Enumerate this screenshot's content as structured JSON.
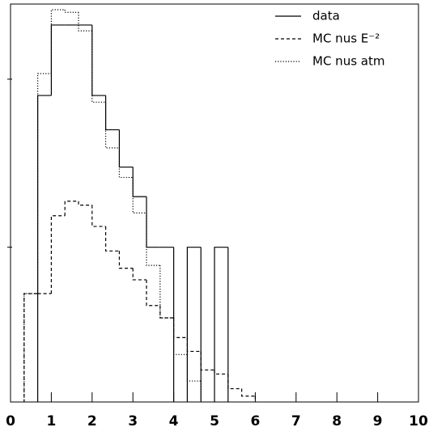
{
  "chart_data": {
    "type": "histogram",
    "bins": [
      0,
      0.333,
      0.667,
      1,
      1.333,
      1.667,
      2,
      2.333,
      2.667,
      3,
      3.333,
      3.667,
      4,
      4.333,
      4.667,
      5,
      5.333,
      5.667,
      6,
      6.333,
      6.667,
      7,
      7.333,
      7.667,
      8,
      8.333,
      8.667,
      9,
      9.333,
      9.667,
      10
    ],
    "series": [
      {
        "name": "data",
        "color": "#000",
        "dash": "solid",
        "values": [
          0,
          0,
          8,
          21,
          21,
          21,
          8,
          5,
          3,
          2,
          1,
          1,
          0,
          1,
          0,
          1,
          0,
          0,
          0,
          0,
          0,
          0,
          0,
          0,
          0,
          0,
          0,
          0,
          0,
          0
        ]
      },
      {
        "name": "MC nus E⁻²",
        "color": "#000",
        "dash": "dashed",
        "values": [
          0,
          0.53,
          0.53,
          1.54,
          1.88,
          1.78,
          1.33,
          0.95,
          0.75,
          0.64,
          0.45,
          0.38,
          0.29,
          0.24,
          0.186,
          0.176,
          0.144,
          0.13,
          0,
          0,
          0,
          0,
          0,
          0,
          0,
          0,
          0,
          0,
          0,
          0
        ]
      },
      {
        "name": "MC nus atm",
        "color": "#000",
        "dash": "dotted",
        "values": [
          0,
          0.53,
          10.8,
          25.9,
          25,
          19.4,
          7.3,
          3.9,
          2.6,
          1.6,
          0.78,
          0.38,
          0.23,
          0.16,
          0,
          0,
          0,
          0,
          0,
          0,
          0,
          0,
          0,
          0,
          0,
          0,
          0,
          0,
          0,
          0
        ]
      }
    ],
    "xlim": [
      0,
      10
    ],
    "xticks": [
      0,
      1,
      2,
      3,
      4,
      5,
      6,
      7,
      8,
      9,
      10
    ],
    "ylim": [
      0.12,
      28
    ],
    "yticks": [
      1,
      10
    ],
    "log_y": true,
    "legend": "upper right"
  }
}
